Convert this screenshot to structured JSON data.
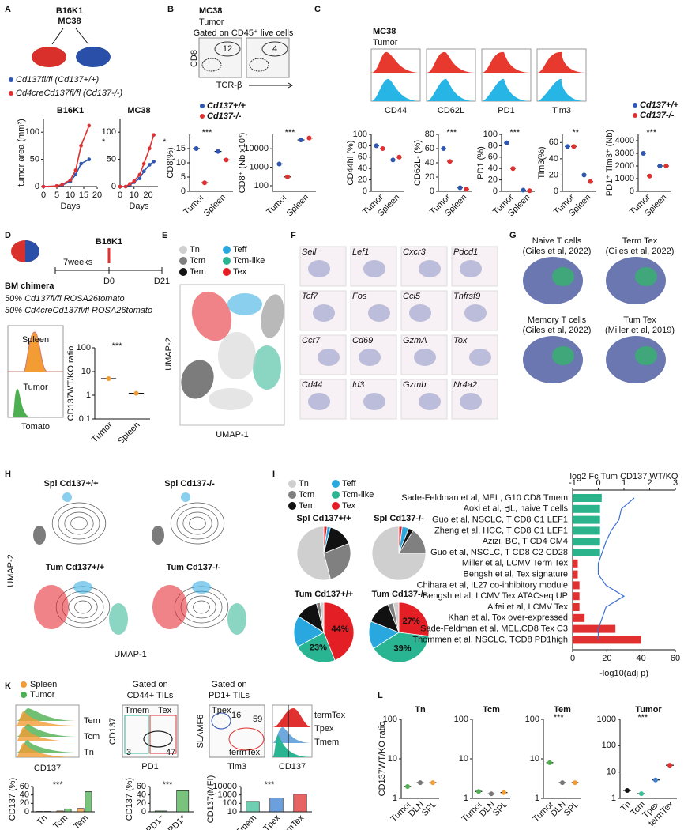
{
  "A": {
    "letter": "A",
    "models": [
      "B16K1",
      "MC38"
    ],
    "legend": [
      "Cd137fl/fl (Cd137+/+)",
      "Cd4creCd137fl/fl (Cd137-/-)"
    ],
    "legend_colors": [
      "#2f56b0",
      "#e0302f"
    ],
    "charts": [
      {
        "type": "line",
        "title": "B16K1",
        "xlabel": "Days",
        "ylabel": "tumor area (mm²)",
        "annotation": "*",
        "x": [
          0,
          5,
          7,
          10,
          12,
          14,
          17
        ],
        "xlim": [
          0,
          20
        ],
        "xticks": [
          0,
          5,
          10,
          15,
          20
        ],
        "ylim": [
          0,
          125
        ],
        "yticks": [
          0,
          50,
          100
        ],
        "series": [
          {
            "color": "#2f56b0",
            "values": [
              0,
              1,
              3,
              9,
              22,
              42,
              50
            ]
          },
          {
            "color": "#e0302f",
            "values": [
              0,
              1,
              4,
              12,
              30,
              75,
              112
            ]
          }
        ]
      },
      {
        "type": "line",
        "title": "MC38",
        "xlabel": "Days",
        "annotation": "*",
        "x": [
          0,
          4,
          7,
          10,
          14,
          17,
          21,
          24
        ],
        "xlim": [
          0,
          27
        ],
        "xticks": [
          0,
          10,
          20
        ],
        "ylim": [
          0,
          125
        ],
        "yticks": [
          0,
          50,
          100
        ],
        "series": [
          {
            "color": "#2f56b0",
            "values": [
              0,
              0,
              3,
              8,
              15,
              28,
              40,
              46
            ]
          },
          {
            "color": "#e0302f",
            "values": [
              0,
              0,
              5,
              10,
              22,
              42,
              70,
              95
            ]
          }
        ]
      }
    ]
  },
  "B": {
    "letter": "B",
    "model": "MC38",
    "tissue": "Tumor",
    "gate": "Gated on CD45⁺ live cells",
    "gate_values": [
      12,
      4
    ],
    "axes": [
      "TCR-β",
      "CD8"
    ],
    "legend": [
      "Cd137+/+",
      "Cd137-/-"
    ],
    "legend_colors": [
      "#2f56b0",
      "#e0302f"
    ],
    "charts": [
      {
        "type": "dot",
        "ylabel": "CD8(%)",
        "annotation": "***",
        "categories": [
          "Tumor",
          "Spleen"
        ],
        "ylim": [
          0,
          20
        ],
        "yticks": [
          0,
          5,
          10,
          15
        ],
        "series": [
          {
            "color": "#2f56b0",
            "values": [
              15,
              14
            ]
          },
          {
            "color": "#e0302f",
            "values": [
              3,
              11
            ]
          }
        ]
      },
      {
        "type": "dot",
        "ylabel": "CD8⁺ (Nb x10³)",
        "log": true,
        "annotation": "***",
        "categories": [
          "Tumor",
          "Spleen"
        ],
        "ylim": [
          50,
          60000
        ],
        "yticks": [
          100,
          1000,
          10000
        ],
        "series": [
          {
            "color": "#2f56b0",
            "values": [
              1500,
              30000
            ]
          },
          {
            "color": "#e0302f",
            "values": [
              300,
              38000
            ]
          }
        ]
      }
    ]
  },
  "C": {
    "letter": "C",
    "model": "MC38",
    "tissue": "Tumor",
    "histograms": [
      "CD44",
      "CD62L",
      "PD1",
      "Tim3"
    ],
    "legend": [
      "Cd137+/+",
      "Cd137-/-"
    ],
    "legend_colors": [
      "#2f56b0",
      "#e0302f"
    ],
    "charts": [
      {
        "type": "dot",
        "ylabel": "CD44hi (%)",
        "categories": [
          "Tumor",
          "Spleen"
        ],
        "ylim": [
          0,
          100
        ],
        "yticks": [
          0,
          20,
          40,
          60,
          80,
          100
        ],
        "series": [
          {
            "color": "#2f56b0",
            "values": [
              80,
              55
            ]
          },
          {
            "color": "#e0302f",
            "values": [
              75,
              60
            ]
          }
        ]
      },
      {
        "type": "dot",
        "ylabel": "CD62L- (%)",
        "annotation": "***",
        "categories": [
          "Tumor",
          "Spleen"
        ],
        "ylim": [
          0,
          80
        ],
        "yticks": [
          0,
          20,
          40,
          60,
          80
        ],
        "series": [
          {
            "color": "#2f56b0",
            "values": [
              60,
              5
            ]
          },
          {
            "color": "#e0302f",
            "values": [
              42,
              3
            ]
          }
        ]
      },
      {
        "type": "dot",
        "ylabel": "PD1 (%)",
        "annotation": "***",
        "categories": [
          "Tumor",
          "Spleen"
        ],
        "ylim": [
          0,
          100
        ],
        "yticks": [
          0,
          20,
          40,
          60,
          80,
          100
        ],
        "series": [
          {
            "color": "#2f56b0",
            "values": [
              85,
              2
            ]
          },
          {
            "color": "#e0302f",
            "values": [
              40,
              1
            ]
          }
        ]
      },
      {
        "type": "dot",
        "ylabel": "Tim3(%)",
        "annotation": "**",
        "categories": [
          "Tumor",
          "Spleen"
        ],
        "ylim": [
          0,
          70
        ],
        "yticks": [
          0,
          20,
          40,
          60
        ],
        "series": [
          {
            "color": "#2f56b0",
            "values": [
              55,
              20
            ]
          },
          {
            "color": "#e0302f",
            "values": [
              55,
              12
            ]
          }
        ]
      },
      {
        "type": "dot",
        "ylabel": "PD1⁺ Tim3⁺ (Nb)",
        "annotation": "***",
        "categories": [
          "Tumor",
          "Spleen"
        ],
        "ylim": [
          0,
          4500
        ],
        "yticks": [
          0,
          1000,
          2000,
          3000,
          4000
        ],
        "series": [
          {
            "color": "#2f56b0",
            "values": [
              3000,
              2000
            ]
          },
          {
            "color": "#e0302f",
            "values": [
              1200,
              2000
            ]
          }
        ]
      }
    ]
  },
  "D": {
    "letter": "D",
    "model": "B16K1",
    "timeline": [
      "7weeks",
      "D0",
      "D21"
    ],
    "setup": "BM chimera",
    "donors": [
      "50% Cd137fl/fl ROSA26tomato",
      "50% Cd4creCd137fl/fl ROSA26tomato"
    ],
    "donor_colors": [
      "#2f56b0",
      "#e0302f"
    ],
    "histograms": [
      "Spleen",
      "Tumor"
    ],
    "histogram_axis": "Tomato",
    "chart": {
      "type": "dot",
      "ylabel": "CD137WT/KO ratio",
      "log": true,
      "annotation": "***",
      "categories": [
        "Tumor",
        "Spleen"
      ],
      "ylim": [
        0.1,
        100
      ],
      "yticks": [
        0.1,
        1,
        10,
        100
      ],
      "series": [
        {
          "color": "#f39c34",
          "values": [
            5,
            1.2
          ]
        }
      ]
    }
  },
  "E": {
    "letter": "E",
    "legend": [
      "Tn",
      "Tcm",
      "Tem",
      "Teff",
      "Tcm-like",
      "Tex"
    ],
    "colors": [
      "#cfcfcf",
      "#808080",
      "#111111",
      "#29a8e0",
      "#2ab592",
      "#e31e24"
    ],
    "axes": [
      "UMAP-1",
      "UMAP-2"
    ]
  },
  "F": {
    "letter": "F",
    "genes": [
      "Sell",
      "Lef1",
      "Cxcr3",
      "Pdcd1",
      "Tcf7",
      "Fos",
      "Ccl5",
      "Tnfrsf9",
      "Ccr7",
      "Cd69",
      "GzmA",
      "Tox",
      "Cd44",
      "Id3",
      "Gzmb",
      "Nr4a2"
    ]
  },
  "G": {
    "letter": "G",
    "signatures": [
      [
        "Naive T cells",
        "(Giles et al, 2022)"
      ],
      [
        "Term Tex",
        "(Giles et al, 2022)"
      ],
      [
        "Memory T cells",
        "(Giles et al, 2022)"
      ],
      [
        "Tum Tex",
        "(Miller et al, 2019)"
      ]
    ]
  },
  "H": {
    "letter": "H",
    "titles": [
      "Spl Cd137+/+",
      "Spl Cd137-/-",
      "Tum Cd137+/+",
      "Tum Cd137-/-"
    ],
    "axes": [
      "UMAP-1",
      "UMAP-2"
    ]
  },
  "I": {
    "letter": "I",
    "categories": [
      "Tn",
      "Tcm",
      "Tem",
      "Teff",
      "Tcm-like",
      "Tex"
    ],
    "colors": [
      "#cfcfcf",
      "#808080",
      "#111111",
      "#29a8e0",
      "#2ab592",
      "#e31e24"
    ],
    "charts": [
      {
        "type": "pie",
        "title": "Spl Cd137+/+",
        "values": [
          54,
          27,
          15,
          2,
          0,
          2
        ],
        "value_labels": [
          null,
          null,
          null,
          null,
          null,
          null
        ]
      },
      {
        "type": "pie",
        "title": "Spl Cd137-/-",
        "values": [
          75,
          16,
          3,
          4,
          0,
          2
        ],
        "value_labels": [
          null,
          null,
          null,
          null,
          null,
          null
        ]
      },
      {
        "type": "pie",
        "title": "Tum Cd137+/+",
        "values": [
          2,
          2,
          12,
          17,
          23,
          44
        ],
        "value_labels": [
          null,
          null,
          null,
          null,
          "23%",
          "44%"
        ]
      },
      {
        "type": "pie",
        "title": "Tum Cd137-/-",
        "values": [
          3,
          3,
          13,
          15,
          39,
          27
        ],
        "value_labels": [
          null,
          null,
          null,
          null,
          "39%",
          "27%"
        ]
      }
    ]
  },
  "J": {
    "letter": "J",
    "type": "bar",
    "title": "log2 Fc Tum CD137 WT/KO",
    "xlabel": "-log10(adj p)",
    "categories": [
      "Sade-Feldman et al, MEL, G10 CD8 Tmem",
      "Aoki et al, HL, naive T cells",
      "Guo et al, NSCLC, T CD8 C1 LEF1",
      "Zheng et al, HCC, T CD8 C1 LEF1",
      "Azizi, BC, T CD4 CM4",
      "Guo et al, NSCLC, T CD8 C2 CD28",
      "Miller et al, LCMV Term Tex",
      "Bengsh et al, Tex signature",
      "Chihara et al, IL27 co-inhibitory module",
      "Bengsh et al, LCMV Tex ATACseq UP",
      "Alfei et al, LCMV Tex",
      "Khan et al, Tox over-expressed",
      "Sade-Feldman et al, MEL,CD8 Tex C3",
      "Thommen et al, NSCLC, TCD8 PD1high"
    ],
    "values": [
      17,
      16,
      16,
      16,
      16,
      16,
      3,
      3,
      4,
      4,
      4,
      7,
      25,
      40
    ],
    "colors": [
      "#2bb38c",
      "#2bb38c",
      "#2bb38c",
      "#2bb38c",
      "#2bb38c",
      "#2bb38c",
      "#e0302f",
      "#e0302f",
      "#e0302f",
      "#e0302f",
      "#e0302f",
      "#e0302f",
      "#e0302f",
      "#e0302f"
    ],
    "xlim": [
      0,
      60
    ],
    "xticks": [
      0,
      20,
      40,
      60
    ],
    "fold_change": {
      "color": "#3f6fd0",
      "values": [
        1.4,
        0.9,
        0.8,
        0.5,
        0.3,
        0.15,
        0,
        0,
        0.3,
        1,
        0.3,
        0.15,
        0,
        0
      ]
    },
    "x2lim": [
      -1,
      3
    ],
    "x2ticks": [
      -1,
      0,
      1,
      2,
      3
    ]
  },
  "K": {
    "letter": "K",
    "legend": [
      "Spleen",
      "Tumor"
    ],
    "legend_colors": [
      "#f39c34",
      "#4caf50"
    ],
    "histogram_rows": [
      "Tem",
      "Tcm",
      "Tn"
    ],
    "histogram_axis": "CD137",
    "gates": [
      [
        "Gated on",
        "CD44+ TILs"
      ],
      [
        "Gated on",
        "PD1+ TILs"
      ]
    ],
    "plot1": {
      "axes": [
        "PD1",
        "CD137"
      ],
      "gates": [
        "Tmem",
        "Tex"
      ],
      "values": [
        3,
        47
      ]
    },
    "plot2": {
      "axes": [
        "Tim3",
        "SLAMF6"
      ],
      "gates": [
        "Tpex",
        "termTex"
      ],
      "values": [
        16,
        59
      ]
    },
    "histogram2": {
      "rows": [
        "termTex",
        "Tpex",
        "Tmem"
      ],
      "axis": "CD137"
    },
    "charts": [
      {
        "type": "bar",
        "ylabel": "CD137 (%)",
        "annotation": "***",
        "categories": [
          "Tn",
          "Tcm",
          "Tem"
        ],
        "ylim": [
          0,
          60
        ],
        "yticks": [
          0,
          20,
          40,
          60
        ],
        "series": [
          {
            "color": "#f39c34",
            "values": [
              1,
              2,
              8
            ]
          },
          {
            "color": "#4caf50",
            "values": [
              1,
              7,
              48
            ]
          }
        ]
      },
      {
        "type": "bar",
        "ylabel": "CD137 (%)",
        "annotation": "***",
        "categories": [
          "PD1⁻",
          "PD1⁺"
        ],
        "ylim": [
          0,
          60
        ],
        "yticks": [
          0,
          20,
          40,
          60
        ],
        "series": [
          {
            "color": "#4caf50",
            "values": [
              2,
              50
            ]
          }
        ]
      },
      {
        "type": "bar",
        "ylabel": "CD137(MFI)",
        "log": true,
        "annotation": "***",
        "categories": [
          "Tmem",
          "Tpex",
          "termTex"
        ],
        "ylim": [
          10,
          10000
        ],
        "yticks": [
          10,
          100,
          1000,
          10000
        ],
        "series": [
          {
            "colors": [
              "#3dbf9a",
              "#3c7fd1",
              "#e0302f"
            ],
            "values": [
              170,
              450,
              1200
            ]
          }
        ]
      }
    ]
  },
  "L": {
    "letter": "L",
    "charts": [
      {
        "type": "dot",
        "title": "Tn",
        "ylabel": "CD137WT/KO ratio",
        "log": true,
        "categories": [
          "Tumor",
          "DLN",
          "SPL"
        ],
        "ylim": [
          1,
          100
        ],
        "yticks": [
          1,
          10,
          100
        ],
        "series": [
          {
            "colors": [
              "#4caf50",
              "#777777",
              "#f39c34"
            ],
            "values": [
              2,
              2.5,
              2.5
            ]
          }
        ]
      },
      {
        "type": "dot",
        "title": "Tcm",
        "log": true,
        "categories": [
          "Tumor",
          "DLN",
          "SPL"
        ],
        "ylim": [
          1,
          100
        ],
        "yticks": [
          1,
          10,
          100
        ],
        "series": [
          {
            "colors": [
              "#4caf50",
              "#777777",
              "#f39c34"
            ],
            "values": [
              1.5,
              1.3,
              1.4
            ]
          }
        ]
      },
      {
        "type": "dot",
        "title": "Tem",
        "log": true,
        "annotation": "***",
        "categories": [
          "Tumor",
          "DLN",
          "SPL"
        ],
        "ylim": [
          1,
          100
        ],
        "yticks": [
          1,
          10,
          100
        ],
        "series": [
          {
            "colors": [
              "#4caf50",
              "#777777",
              "#f39c34"
            ],
            "values": [
              8,
              2.5,
              2.5
            ]
          }
        ]
      },
      {
        "type": "dot",
        "title": "Tumor",
        "log": true,
        "annotation": "***",
        "categories": [
          "Tn",
          "Tcm",
          "Tpex",
          "termTex"
        ],
        "ylim": [
          1,
          1000
        ],
        "yticks": [
          1,
          10,
          100,
          1000
        ],
        "series": [
          {
            "colors": [
              "#111111",
              "#3dbf9a",
              "#3c7fd1",
              "#e0302f"
            ],
            "values": [
              2,
              1.5,
              5,
              18
            ]
          }
        ]
      }
    ]
  }
}
